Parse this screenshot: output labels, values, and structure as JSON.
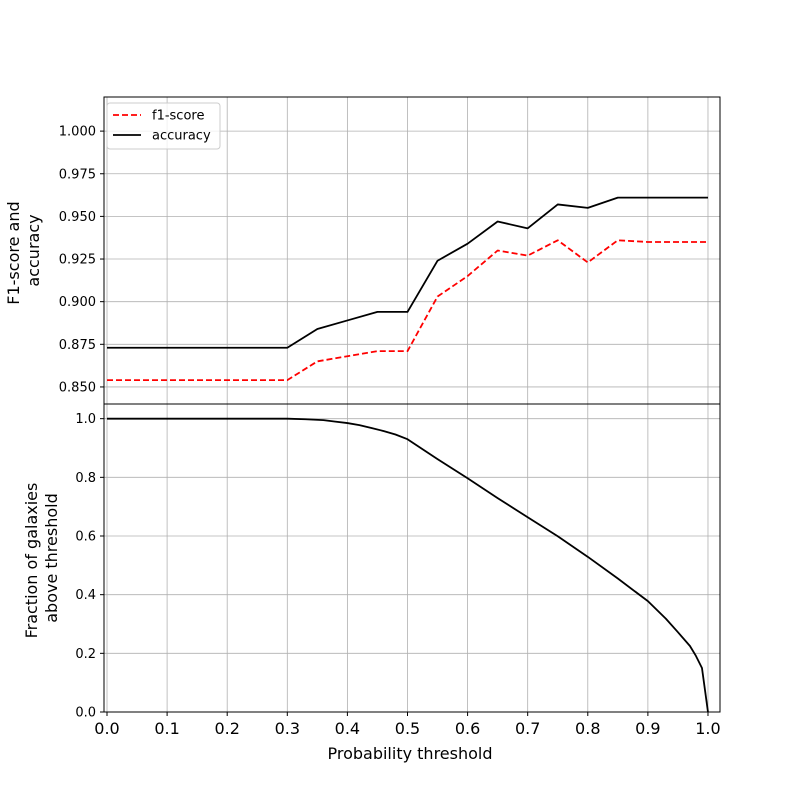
{
  "chart_data": [
    {
      "type": "line",
      "ylabel_lines": [
        "F1-score and",
        "accuracy"
      ],
      "xlim": [
        -0.005,
        1.02
      ],
      "ylim": [
        0.84,
        1.02
      ],
      "yticks": [
        0.85,
        0.875,
        0.9,
        0.925,
        0.95,
        0.975,
        1.0
      ],
      "ytick_labels": [
        "0.850",
        "0.875",
        "0.900",
        "0.925",
        "0.950",
        "0.975",
        "1.000"
      ],
      "xticks": [
        0.0,
        0.1,
        0.2,
        0.3,
        0.4,
        0.5,
        0.6,
        0.7,
        0.8,
        0.9,
        1.0
      ],
      "grid": true,
      "legend": "top-left",
      "x": [
        0.0,
        0.05,
        0.1,
        0.15,
        0.2,
        0.25,
        0.3,
        0.35,
        0.4,
        0.45,
        0.5,
        0.55,
        0.6,
        0.65,
        0.7,
        0.75,
        0.8,
        0.85,
        0.9,
        0.95,
        1.0
      ],
      "series": [
        {
          "name": "f1-score",
          "color": "#ff0000",
          "style": "dashed",
          "values": [
            0.854,
            0.854,
            0.854,
            0.854,
            0.854,
            0.854,
            0.854,
            0.865,
            0.868,
            0.871,
            0.871,
            0.903,
            0.915,
            0.93,
            0.927,
            0.936,
            0.923,
            0.936,
            0.935,
            0.935,
            0.935
          ]
        },
        {
          "name": "accuracy",
          "color": "#000000",
          "style": "solid",
          "values": [
            0.873,
            0.873,
            0.873,
            0.873,
            0.873,
            0.873,
            0.873,
            0.884,
            0.889,
            0.894,
            0.894,
            0.924,
            0.934,
            0.947,
            0.943,
            0.957,
            0.955,
            0.961,
            0.961,
            0.961,
            0.961
          ]
        }
      ]
    },
    {
      "type": "line",
      "xlabel": "Probability threshold",
      "ylabel_lines": [
        "Fraction of galaxies",
        "above threshold"
      ],
      "xlim": [
        -0.005,
        1.02
      ],
      "ylim": [
        0.0,
        1.05
      ],
      "yticks": [
        0.0,
        0.2,
        0.4,
        0.6,
        0.8,
        1.0
      ],
      "ytick_labels": [
        "0.0",
        "0.2",
        "0.4",
        "0.6",
        "0.8",
        "1.0"
      ],
      "xticks": [
        0.0,
        0.1,
        0.2,
        0.3,
        0.4,
        0.5,
        0.6,
        0.7,
        0.8,
        0.9,
        1.0
      ],
      "xtick_labels": [
        "0.0",
        "0.1",
        "0.2",
        "0.3",
        "0.4",
        "0.5",
        "0.6",
        "0.7",
        "0.8",
        "0.9",
        "1.0"
      ],
      "grid": true,
      "x": [
        0.0,
        0.1,
        0.2,
        0.3,
        0.33,
        0.36,
        0.38,
        0.4,
        0.42,
        0.44,
        0.46,
        0.48,
        0.5,
        0.55,
        0.6,
        0.65,
        0.7,
        0.75,
        0.8,
        0.85,
        0.9,
        0.93,
        0.95,
        0.97,
        0.98,
        0.99,
        1.0
      ],
      "series": [
        {
          "color": "#000000",
          "style": "solid",
          "values": [
            1.0,
            1.0,
            1.0,
            1.0,
            0.998,
            0.995,
            0.99,
            0.985,
            0.978,
            0.968,
            0.958,
            0.946,
            0.93,
            0.862,
            0.797,
            0.729,
            0.664,
            0.599,
            0.529,
            0.455,
            0.378,
            0.318,
            0.272,
            0.225,
            0.191,
            0.15,
            0.0
          ]
        }
      ]
    }
  ]
}
